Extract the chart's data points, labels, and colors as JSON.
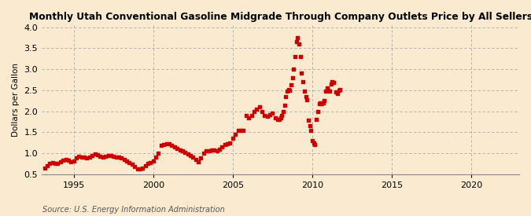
{
  "title": "Monthly Utah Conventional Gasoline Midgrade Through Company Outlets Price by All Sellers",
  "ylabel": "Dollars per Gallon",
  "source": "Source: U.S. Energy Information Administration",
  "bg_color": "#faebd0",
  "data_color": "#cc0000",
  "xlim": [
    1993.0,
    2023.0
  ],
  "ylim": [
    0.5,
    4.05
  ],
  "yticks": [
    0.5,
    1.0,
    1.5,
    2.0,
    2.5,
    3.0,
    3.5,
    4.0
  ],
  "xticks": [
    1995,
    2000,
    2005,
    2010,
    2015,
    2020
  ],
  "data": [
    [
      1993.17,
      0.65
    ],
    [
      1993.33,
      0.7
    ],
    [
      1993.5,
      0.75
    ],
    [
      1993.67,
      0.78
    ],
    [
      1993.83,
      0.75
    ],
    [
      1994.0,
      0.76
    ],
    [
      1994.17,
      0.8
    ],
    [
      1994.33,
      0.83
    ],
    [
      1994.5,
      0.85
    ],
    [
      1994.67,
      0.83
    ],
    [
      1994.83,
      0.8
    ],
    [
      1995.0,
      0.82
    ],
    [
      1995.17,
      0.88
    ],
    [
      1995.33,
      0.92
    ],
    [
      1995.5,
      0.91
    ],
    [
      1995.67,
      0.9
    ],
    [
      1995.83,
      0.88
    ],
    [
      1996.0,
      0.9
    ],
    [
      1996.17,
      0.95
    ],
    [
      1996.33,
      0.98
    ],
    [
      1996.5,
      0.96
    ],
    [
      1996.67,
      0.93
    ],
    [
      1996.83,
      0.9
    ],
    [
      1997.0,
      0.92
    ],
    [
      1997.17,
      0.94
    ],
    [
      1997.33,
      0.95
    ],
    [
      1997.5,
      0.93
    ],
    [
      1997.67,
      0.91
    ],
    [
      1997.83,
      0.9
    ],
    [
      1998.0,
      0.88
    ],
    [
      1998.17,
      0.85
    ],
    [
      1998.33,
      0.82
    ],
    [
      1998.5,
      0.78
    ],
    [
      1998.67,
      0.74
    ],
    [
      1998.83,
      0.68
    ],
    [
      1999.0,
      0.63
    ],
    [
      1999.17,
      0.62
    ],
    [
      1999.33,
      0.65
    ],
    [
      1999.5,
      0.7
    ],
    [
      1999.67,
      0.75
    ],
    [
      1999.83,
      0.78
    ],
    [
      2000.0,
      0.82
    ],
    [
      2000.17,
      0.9
    ],
    [
      2000.33,
      1.0
    ],
    [
      2000.5,
      1.18
    ],
    [
      2000.67,
      1.2
    ],
    [
      2000.83,
      1.22
    ],
    [
      2001.0,
      1.22
    ],
    [
      2001.17,
      1.18
    ],
    [
      2001.33,
      1.15
    ],
    [
      2001.5,
      1.12
    ],
    [
      2001.67,
      1.08
    ],
    [
      2001.83,
      1.05
    ],
    [
      2002.0,
      1.02
    ],
    [
      2002.17,
      0.98
    ],
    [
      2002.33,
      0.95
    ],
    [
      2002.5,
      0.9
    ],
    [
      2002.67,
      0.85
    ],
    [
      2002.83,
      0.8
    ],
    [
      2003.0,
      0.88
    ],
    [
      2003.17,
      1.0
    ],
    [
      2003.33,
      1.05
    ],
    [
      2003.5,
      1.05
    ],
    [
      2003.67,
      1.08
    ],
    [
      2003.83,
      1.08
    ],
    [
      2004.0,
      1.05
    ],
    [
      2004.17,
      1.1
    ],
    [
      2004.33,
      1.15
    ],
    [
      2004.5,
      1.2
    ],
    [
      2004.67,
      1.22
    ],
    [
      2004.83,
      1.25
    ],
    [
      2005.0,
      1.35
    ],
    [
      2005.17,
      1.45
    ],
    [
      2005.33,
      1.55
    ],
    [
      2005.5,
      1.55
    ],
    [
      2005.67,
      1.55
    ],
    [
      2005.83,
      1.9
    ],
    [
      2006.0,
      1.85
    ],
    [
      2006.17,
      1.9
    ],
    [
      2006.33,
      2.0
    ],
    [
      2006.5,
      2.05
    ],
    [
      2006.67,
      2.1
    ],
    [
      2006.83,
      2.0
    ],
    [
      2007.0,
      1.9
    ],
    [
      2007.17,
      1.88
    ],
    [
      2007.33,
      1.92
    ],
    [
      2007.5,
      1.95
    ],
    [
      2007.67,
      1.85
    ],
    [
      2007.83,
      1.8
    ],
    [
      2007.92,
      1.8
    ],
    [
      2008.0,
      1.85
    ],
    [
      2008.08,
      1.9
    ],
    [
      2008.17,
      2.0
    ],
    [
      2008.25,
      2.15
    ],
    [
      2008.33,
      2.35
    ],
    [
      2008.42,
      2.48
    ],
    [
      2008.5,
      2.52
    ],
    [
      2008.58,
      2.5
    ],
    [
      2008.67,
      2.62
    ],
    [
      2008.75,
      2.8
    ],
    [
      2008.83,
      3.0
    ],
    [
      2008.92,
      3.3
    ],
    [
      2009.0,
      3.65
    ],
    [
      2009.08,
      3.75
    ],
    [
      2009.17,
      3.6
    ],
    [
      2009.25,
      3.3
    ],
    [
      2009.33,
      2.9
    ],
    [
      2009.42,
      2.7
    ],
    [
      2009.5,
      2.48
    ],
    [
      2009.58,
      2.35
    ],
    [
      2009.67,
      2.28
    ],
    [
      2009.75,
      1.78
    ],
    [
      2009.83,
      1.65
    ],
    [
      2009.92,
      1.55
    ],
    [
      2010.0,
      1.3
    ],
    [
      2010.08,
      1.25
    ],
    [
      2010.17,
      1.2
    ],
    [
      2010.25,
      1.8
    ],
    [
      2010.33,
      2.0
    ],
    [
      2010.42,
      2.18
    ],
    [
      2010.5,
      2.2
    ],
    [
      2010.58,
      2.18
    ],
    [
      2010.67,
      2.2
    ],
    [
      2010.75,
      2.25
    ],
    [
      2010.83,
      2.48
    ],
    [
      2010.92,
      2.55
    ],
    [
      2011.0,
      2.5
    ],
    [
      2011.08,
      2.48
    ],
    [
      2011.17,
      2.65
    ],
    [
      2011.25,
      2.7
    ],
    [
      2011.33,
      2.68
    ],
    [
      2011.5,
      2.45
    ],
    [
      2011.58,
      2.42
    ],
    [
      2011.67,
      2.5
    ],
    [
      2011.75,
      2.52
    ]
  ]
}
